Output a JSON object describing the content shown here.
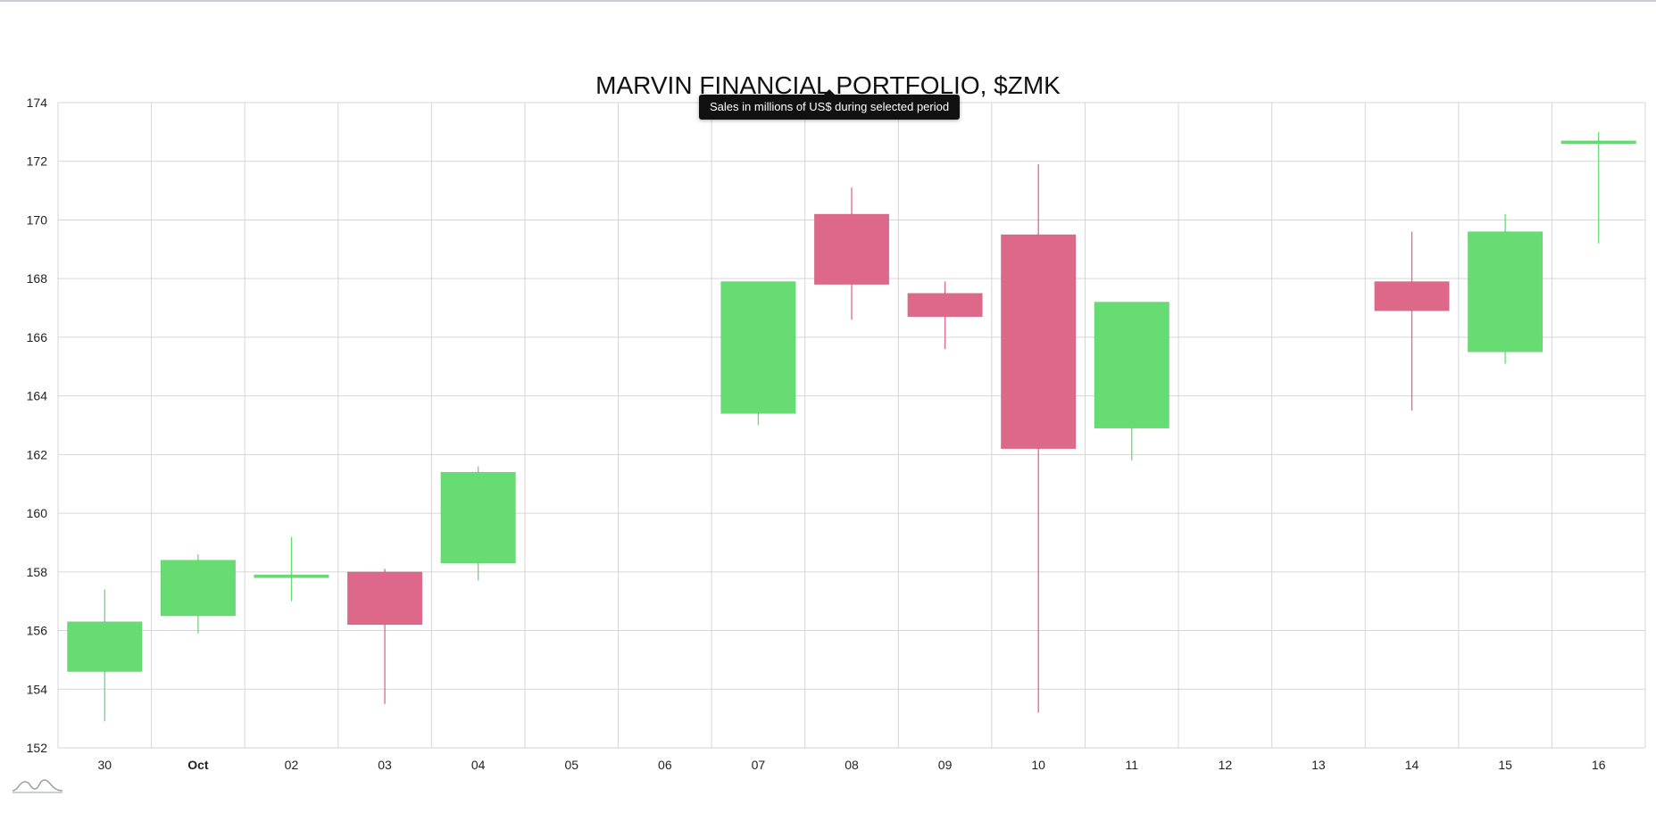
{
  "chart_data": {
    "type": "candlestick",
    "title": "MARVIN FINANCIAL PORTFOLIO, $ZMK",
    "tooltip": "Sales in millions of US$ during selected period",
    "categories": [
      "30",
      "Oct",
      "02",
      "03",
      "04",
      "05",
      "06",
      "07",
      "08",
      "09",
      "10",
      "11",
      "12",
      "13",
      "14",
      "15",
      "16"
    ],
    "bold_categories": [
      "Oct"
    ],
    "ylim": [
      152,
      174
    ],
    "yticks": [
      152,
      154,
      156,
      158,
      160,
      162,
      164,
      166,
      168,
      170,
      172,
      174
    ],
    "grid": true,
    "colors": {
      "up": "#66dc73",
      "down": "#de6889",
      "grid": "#d6d6d6"
    },
    "candles": [
      {
        "x": "30",
        "open": 154.6,
        "high": 157.4,
        "low": 152.9,
        "close": 156.3
      },
      {
        "x": "Oct",
        "open": 156.5,
        "high": 158.6,
        "low": 155.9,
        "close": 158.4
      },
      {
        "x": "02",
        "open": 157.8,
        "high": 159.2,
        "low": 157.0,
        "close": 157.9
      },
      {
        "x": "03",
        "open": 158.0,
        "high": 158.1,
        "low": 153.5,
        "close": 156.2
      },
      {
        "x": "04",
        "open": 158.3,
        "high": 161.6,
        "low": 157.7,
        "close": 161.4
      },
      {
        "x": "07",
        "open": 163.4,
        "high": 167.9,
        "low": 163.0,
        "close": 167.9
      },
      {
        "x": "08",
        "open": 170.2,
        "high": 171.1,
        "low": 166.6,
        "close": 167.8
      },
      {
        "x": "09",
        "open": 167.5,
        "high": 167.9,
        "low": 165.6,
        "close": 166.7
      },
      {
        "x": "10",
        "open": 169.5,
        "high": 171.9,
        "low": 153.2,
        "close": 162.2
      },
      {
        "x": "11",
        "open": 162.9,
        "high": 167.2,
        "low": 161.8,
        "close": 167.2
      },
      {
        "x": "14",
        "open": 167.9,
        "high": 169.6,
        "low": 163.5,
        "close": 166.9
      },
      {
        "x": "15",
        "open": 165.5,
        "high": 170.2,
        "low": 165.1,
        "close": 169.6
      },
      {
        "x": "16",
        "open": 172.6,
        "high": 173.0,
        "low": 169.2,
        "close": 172.7
      }
    ]
  }
}
